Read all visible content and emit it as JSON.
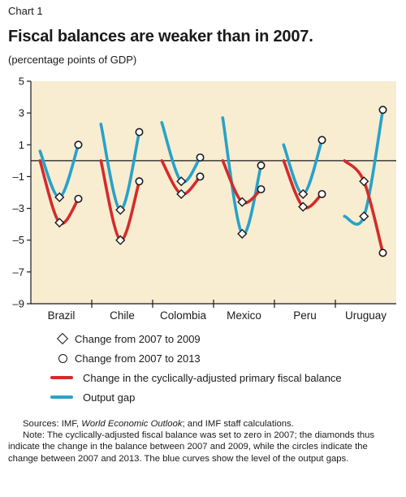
{
  "header": {
    "chart_label": "Chart 1",
    "title": "Fiscal balances are weaker than in 2007.",
    "subtitle": "(percentage points of GDP)"
  },
  "colors": {
    "background_panel": "#f8ecd1",
    "fiscal_line": "#d42b2b",
    "output_gap_line": "#27a2c8",
    "marker": "#1a1a1a"
  },
  "chart_data": {
    "type": "line",
    "ylim": [
      -9,
      5
    ],
    "yticks": [
      5,
      3,
      1,
      -1,
      -3,
      -5,
      -7,
      -9
    ],
    "ytick_labels": [
      "5",
      "3",
      "1",
      "–1",
      "–3",
      "–5",
      "–7",
      "–9"
    ],
    "categories": [
      "Brazil",
      "Chile",
      "Colombia",
      "Mexico",
      "Peru",
      "Uruguay"
    ],
    "x_points": [
      "2007",
      "2009",
      "2013"
    ],
    "series": [
      {
        "name": "Change in the cyclically-adjusted primary fiscal balance",
        "key": "fiscal",
        "values": {
          "Brazil": [
            0,
            -3.9,
            -2.4
          ],
          "Chile": [
            0,
            -5.0,
            -1.3
          ],
          "Colombia": [
            0,
            -2.1,
            -1.0
          ],
          "Mexico": [
            0,
            -2.6,
            -1.8
          ],
          "Peru": [
            0,
            -2.9,
            -2.1
          ],
          "Uruguay": [
            0,
            -1.3,
            -5.8
          ]
        }
      },
      {
        "name": "Output gap",
        "key": "output_gap",
        "values": {
          "Brazil": [
            0.6,
            -2.3,
            1.0
          ],
          "Chile": [
            2.3,
            -3.1,
            1.8
          ],
          "Colombia": [
            2.4,
            -1.3,
            0.2
          ],
          "Mexico": [
            2.7,
            -4.6,
            -0.3
          ],
          "Peru": [
            1.0,
            -2.1,
            1.3
          ],
          "Uruguay": [
            -3.5,
            -3.5,
            3.2
          ]
        }
      }
    ],
    "legend": {
      "position": "below",
      "entries": [
        {
          "symbol": "diamond",
          "label": "Change from 2007 to 2009"
        },
        {
          "symbol": "circle",
          "label": "Change from 2007 to 2013"
        },
        {
          "symbol": "red-line",
          "label": "Change in the cyclically-adjusted primary fiscal balance"
        },
        {
          "symbol": "blue-line",
          "label": "Output gap"
        }
      ]
    },
    "grid": false
  },
  "notes": {
    "sources_prefix": "Sources: IMF, ",
    "sources_italic": "World Economic Outlook",
    "sources_suffix": "; and IMF staff calculations.",
    "note": "Note: The cyclically-adjusted fiscal balance was set to zero in 2007; the diamonds thus indicate the change in the balance between 2007 and 2009, while the circles indicate the change between 2007 and 2013. The blue curves show the level of the output gaps."
  }
}
